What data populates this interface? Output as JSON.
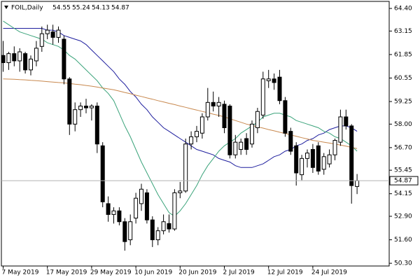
{
  "chart_data": {
    "type": "candlestick",
    "title": "FOIL,Daily",
    "categories": [
      "7 May 2019",
      null,
      null,
      null,
      null,
      null,
      null,
      null,
      "17 May 2019",
      null,
      null,
      null,
      null,
      null,
      null,
      null,
      "29 May 2019",
      null,
      null,
      null,
      null,
      null,
      null,
      null,
      "10 Jun 2019",
      null,
      null,
      null,
      null,
      null,
      null,
      null,
      "20 Jun 2019",
      null,
      null,
      null,
      null,
      null,
      null,
      null,
      "2 Jul 2019",
      null,
      null,
      null,
      null,
      null,
      null,
      null,
      "12 Jul 2019",
      null,
      null,
      null,
      null,
      null,
      null,
      null,
      "24 Jul 2019",
      null,
      null,
      null,
      null,
      null,
      null,
      null,
      null
    ],
    "open": [
      61.8,
      61.4,
      61.9,
      61.5,
      61.9,
      61.0,
      61.5,
      62.3,
      63.0,
      63.1,
      62.8,
      62.7,
      60.5,
      58.0,
      58.8,
      59.0,
      58.9,
      59.0,
      56.8,
      53.6,
      53.0,
      53.2,
      52.6,
      51.6,
      52.8,
      53.6,
      54.2,
      52.7,
      51.6,
      52.1,
      52.5,
      52.2,
      54.2,
      54.3,
      56.9,
      57.3,
      57.5,
      58.4,
      59.2,
      59.0,
      59.1,
      59.0,
      56.3,
      56.6,
      57.2,
      56.9,
      57.8,
      58.5,
      60.4,
      60.5,
      60.6,
      59.3,
      57.6,
      56.8,
      55.2,
      56.1,
      56.6,
      56.8,
      55.5,
      55.8,
      56.3,
      57.0,
      58.4,
      57.9,
      54.55
    ],
    "high": [
      62.6,
      62.0,
      62.3,
      62.2,
      62.0,
      61.8,
      62.6,
      63.4,
      63.5,
      63.5,
      63.4,
      62.9,
      60.6,
      59.2,
      59.2,
      59.4,
      59.1,
      59.2,
      57.0,
      54.0,
      53.4,
      53.4,
      52.8,
      53.0,
      54.2,
      54.7,
      54.4,
      52.9,
      52.3,
      53.0,
      53.0,
      54.4,
      54.8,
      57.2,
      57.6,
      57.9,
      58.6,
      60.0,
      59.8,
      59.5,
      59.3,
      59.1,
      57.4,
      57.2,
      57.5,
      58.2,
      58.9,
      60.9,
      61.0,
      60.8,
      61.0,
      59.5,
      57.8,
      57.0,
      56.3,
      56.6,
      56.9,
      57.0,
      56.4,
      56.6,
      57.2,
      58.8,
      58.8,
      58.0,
      55.24
    ],
    "low": [
      60.9,
      61.0,
      61.2,
      60.9,
      60.8,
      60.7,
      61.2,
      62.0,
      62.7,
      62.4,
      62.5,
      60.2,
      57.4,
      57.6,
      58.4,
      58.6,
      58.2,
      56.4,
      53.4,
      52.6,
      52.5,
      52.4,
      51.0,
      51.3,
      52.5,
      53.2,
      52.5,
      51.2,
      51.3,
      51.9,
      52.0,
      52.1,
      53.9,
      54.2,
      56.6,
      57.0,
      57.2,
      58.2,
      58.7,
      58.4,
      57.5,
      56.1,
      56.1,
      56.3,
      56.3,
      56.7,
      57.5,
      58.3,
      60.0,
      59.9,
      59.1,
      57.3,
      56.3,
      54.6,
      54.9,
      55.6,
      55.3,
      55.2,
      55.2,
      55.6,
      56.0,
      56.8,
      57.7,
      53.6,
      54.13
    ],
    "close": [
      61.4,
      61.9,
      61.5,
      62.0,
      61.0,
      61.6,
      62.2,
      63.0,
      63.2,
      62.8,
      63.2,
      60.5,
      58.0,
      58.8,
      59.0,
      58.9,
      59.0,
      56.9,
      53.7,
      53.0,
      53.2,
      52.6,
      51.5,
      52.6,
      53.9,
      54.4,
      52.7,
      51.6,
      52.1,
      52.6,
      52.2,
      54.2,
      54.3,
      56.9,
      57.3,
      57.6,
      58.4,
      59.2,
      59.0,
      59.2,
      57.8,
      56.3,
      57.0,
      57.0,
      56.6,
      58.0,
      58.7,
      60.5,
      60.5,
      60.3,
      59.3,
      57.5,
      56.5,
      55.3,
      56.1,
      56.4,
      55.6,
      55.4,
      56.2,
      56.3,
      57.1,
      58.4,
      57.9,
      54.6,
      54.87
    ],
    "up_color": "#ffffff",
    "down_color": "#000000",
    "candle_edge": "#000000",
    "series": [
      {
        "color": "#1e1e9e",
        "values": [
          63.3,
          63.3,
          63.3,
          63.3,
          63.3,
          63.3,
          63.3,
          63.3,
          63.2,
          63.2,
          63.1,
          62.9,
          62.8,
          62.7,
          62.6,
          62.4,
          62.1,
          61.8,
          61.5,
          61.2,
          60.9,
          60.5,
          60.2,
          59.8,
          59.5,
          59.1,
          58.8,
          58.4,
          58.1,
          57.8,
          57.6,
          57.4,
          57.2,
          57.0,
          56.8,
          56.6,
          56.5,
          56.4,
          56.3,
          56.1,
          56.0,
          55.9,
          55.7,
          55.6,
          55.6,
          55.6,
          55.7,
          55.8,
          56.0,
          56.2,
          56.3,
          56.5,
          56.6,
          56.8,
          56.9,
          57.1,
          57.2,
          57.4,
          57.5,
          57.7,
          57.8,
          57.9,
          57.9,
          57.8,
          57.6
        ]
      },
      {
        "color": "#3aa37a",
        "values": [
          63.7,
          63.5,
          63.3,
          63.1,
          63.0,
          62.9,
          62.8,
          62.7,
          62.5,
          62.4,
          62.3,
          62.1,
          61.8,
          61.6,
          61.3,
          61.0,
          60.7,
          60.4,
          60.0,
          59.7,
          59.3,
          58.6,
          57.9,
          57.3,
          56.6,
          55.9,
          55.3,
          54.7,
          54.1,
          53.6,
          53.1,
          52.9,
          53.2,
          53.6,
          54.1,
          54.6,
          55.2,
          55.7,
          56.1,
          56.5,
          56.8,
          57.0,
          57.2,
          57.5,
          57.7,
          57.9,
          58.1,
          58.4,
          58.5,
          58.6,
          58.6,
          58.5,
          58.4,
          58.2,
          58.1,
          58.0,
          57.9,
          57.8,
          57.6,
          57.5,
          57.3,
          57.2,
          57.0,
          56.8,
          56.5
        ]
      },
      {
        "color": "#c8884e",
        "values": [
          60.5,
          60.49,
          60.48,
          60.46,
          60.45,
          60.42,
          60.4,
          60.38,
          60.35,
          60.33,
          60.3,
          60.28,
          60.25,
          60.21,
          60.18,
          60.14,
          60.1,
          60.05,
          60.0,
          59.95,
          59.9,
          59.83,
          59.75,
          59.68,
          59.6,
          59.53,
          59.45,
          59.38,
          59.3,
          59.23,
          59.15,
          59.08,
          59.0,
          58.93,
          58.85,
          58.78,
          58.7,
          58.63,
          58.55,
          58.48,
          58.4,
          58.3,
          58.2,
          58.1,
          58.0,
          57.93,
          57.85,
          57.78,
          57.7,
          57.63,
          57.55,
          57.48,
          57.4,
          57.33,
          57.25,
          57.18,
          57.1,
          57.05,
          57.0,
          56.95,
          56.9,
          56.84,
          56.78,
          56.71,
          56.65
        ]
      }
    ],
    "ylim": [
      50.15,
      64.79
    ],
    "yticks": [
      {
        "value": 64.4,
        "label": "64.40"
      },
      63.15,
      61.85,
      60.55,
      59.25,
      {
        "value": 58.0,
        "label": "58.00"
      },
      {
        "value": 56.7,
        "label": "56.70"
      },
      55.45,
      54.15,
      {
        "value": 52.9,
        "label": "52.90"
      },
      {
        "value": 51.6,
        "label": "51.60"
      },
      {
        "value": 50.3,
        "label": "50.30"
      }
    ],
    "grid": false
  }
}
